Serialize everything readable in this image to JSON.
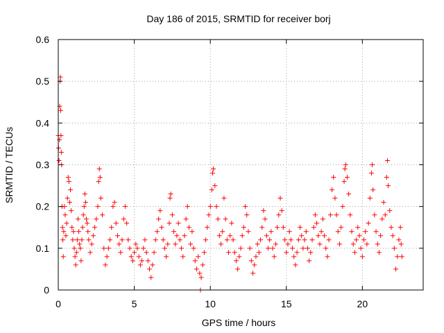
{
  "chart_data": {
    "type": "scatter",
    "title": "Day 186 of 2015, SRMTID for receiver borj",
    "xlabel": "GPS time / hours",
    "ylabel": "SRMTID / TECUs",
    "xlim": [
      0,
      24
    ],
    "ylim": [
      0,
      0.6
    ],
    "xticks": [
      0,
      5,
      10,
      15,
      20
    ],
    "xtick_labels": [
      "0",
      "5",
      "10",
      "15",
      "20"
    ],
    "yticks": [
      0,
      0.1,
      0.2,
      0.3,
      0.4,
      0.5,
      0.6
    ],
    "ytick_labels": [
      "0",
      "0.1",
      "0.2",
      "0.3",
      "0.4",
      "0.5",
      "0.6"
    ],
    "grid": true,
    "marker": "+",
    "color": "#ff0000",
    "series": [
      {
        "name": "SRMTID",
        "points": [
          [
            0.0,
            0.37
          ],
          [
            0.02,
            0.34
          ],
          [
            0.05,
            0.31
          ],
          [
            0.08,
            0.36
          ],
          [
            0.1,
            0.44
          ],
          [
            0.12,
            0.5
          ],
          [
            0.14,
            0.51
          ],
          [
            0.16,
            0.43
          ],
          [
            0.18,
            0.37
          ],
          [
            0.2,
            0.33
          ],
          [
            0.22,
            0.3
          ],
          [
            0.25,
            0.2
          ],
          [
            0.28,
            0.15
          ],
          [
            0.3,
            0.12
          ],
          [
            0.33,
            0.08
          ],
          [
            0.36,
            0.14
          ],
          [
            0.4,
            0.2
          ],
          [
            0.45,
            0.18
          ],
          [
            0.5,
            0.13
          ],
          [
            0.55,
            0.16
          ],
          [
            0.6,
            0.22
          ],
          [
            0.65,
            0.27
          ],
          [
            0.7,
            0.26
          ],
          [
            0.75,
            0.21
          ],
          [
            0.8,
            0.24
          ],
          [
            0.85,
            0.19
          ],
          [
            0.9,
            0.15
          ],
          [
            0.95,
            0.12
          ],
          [
            1.0,
            0.14
          ],
          [
            1.05,
            0.1
          ],
          [
            1.1,
            0.08
          ],
          [
            1.15,
            0.06
          ],
          [
            1.2,
            0.09
          ],
          [
            1.25,
            0.12
          ],
          [
            1.3,
            0.17
          ],
          [
            1.35,
            0.14
          ],
          [
            1.4,
            0.11
          ],
          [
            1.45,
            0.1
          ],
          [
            1.5,
            0.07
          ],
          [
            1.55,
            0.12
          ],
          [
            1.6,
            0.15
          ],
          [
            1.65,
            0.18
          ],
          [
            1.7,
            0.2
          ],
          [
            1.75,
            0.23
          ],
          [
            1.8,
            0.21
          ],
          [
            1.85,
            0.17
          ],
          [
            1.9,
            0.16
          ],
          [
            1.95,
            0.14
          ],
          [
            2.0,
            0.12
          ],
          [
            2.1,
            0.09
          ],
          [
            2.2,
            0.11
          ],
          [
            2.3,
            0.13
          ],
          [
            2.4,
            0.15
          ],
          [
            2.5,
            0.17
          ],
          [
            2.6,
            0.2
          ],
          [
            2.65,
            0.26
          ],
          [
            2.7,
            0.29
          ],
          [
            2.75,
            0.27
          ],
          [
            2.8,
            0.22
          ],
          [
            2.9,
            0.18
          ],
          [
            3.0,
            0.1
          ],
          [
            3.1,
            0.06
          ],
          [
            3.2,
            0.08
          ],
          [
            3.3,
            0.1
          ],
          [
            3.4,
            0.12
          ],
          [
            3.5,
            0.15
          ],
          [
            3.6,
            0.2
          ],
          [
            3.7,
            0.21
          ],
          [
            3.8,
            0.16
          ],
          [
            3.9,
            0.13
          ],
          [
            4.0,
            0.11
          ],
          [
            4.1,
            0.09
          ],
          [
            4.2,
            0.12
          ],
          [
            4.3,
            0.17
          ],
          [
            4.4,
            0.2
          ],
          [
            4.5,
            0.16
          ],
          [
            4.6,
            0.12
          ],
          [
            4.7,
            0.1
          ],
          [
            4.8,
            0.08
          ],
          [
            4.9,
            0.07
          ],
          [
            5.0,
            0.09
          ],
          [
            5.1,
            0.11
          ],
          [
            5.2,
            0.1
          ],
          [
            5.3,
            0.08
          ],
          [
            5.4,
            0.06
          ],
          [
            5.5,
            0.07
          ],
          [
            5.6,
            0.1
          ],
          [
            5.7,
            0.12
          ],
          [
            5.8,
            0.09
          ],
          [
            5.9,
            0.07
          ],
          [
            6.0,
            0.05
          ],
          [
            6.1,
            0.03
          ],
          [
            6.2,
            0.06
          ],
          [
            6.3,
            0.09
          ],
          [
            6.4,
            0.12
          ],
          [
            6.5,
            0.14
          ],
          [
            6.6,
            0.17
          ],
          [
            6.7,
            0.19
          ],
          [
            6.8,
            0.15
          ],
          [
            6.9,
            0.12
          ],
          [
            7.0,
            0.1
          ],
          [
            7.1,
            0.08
          ],
          [
            7.2,
            0.11
          ],
          [
            7.3,
            0.16
          ],
          [
            7.35,
            0.22
          ],
          [
            7.4,
            0.23
          ],
          [
            7.5,
            0.18
          ],
          [
            7.6,
            0.14
          ],
          [
            7.7,
            0.11
          ],
          [
            7.8,
            0.13
          ],
          [
            7.9,
            0.16
          ],
          [
            8.0,
            0.12
          ],
          [
            8.1,
            0.1
          ],
          [
            8.2,
            0.08
          ],
          [
            8.3,
            0.13
          ],
          [
            8.4,
            0.17
          ],
          [
            8.5,
            0.2
          ],
          [
            8.6,
            0.15
          ],
          [
            8.7,
            0.11
          ],
          [
            8.8,
            0.14
          ],
          [
            8.9,
            0.1
          ],
          [
            9.0,
            0.07
          ],
          [
            9.1,
            0.05
          ],
          [
            9.2,
            0.08
          ],
          [
            9.3,
            0.04
          ],
          [
            9.35,
            0.0
          ],
          [
            9.4,
            0.03
          ],
          [
            9.5,
            0.06
          ],
          [
            9.6,
            0.09
          ],
          [
            9.7,
            0.12
          ],
          [
            9.8,
            0.15
          ],
          [
            9.9,
            0.18
          ],
          [
            10.0,
            0.2
          ],
          [
            10.1,
            0.24
          ],
          [
            10.15,
            0.28
          ],
          [
            10.2,
            0.29
          ],
          [
            10.3,
            0.25
          ],
          [
            10.4,
            0.2
          ],
          [
            10.5,
            0.17
          ],
          [
            10.6,
            0.13
          ],
          [
            10.7,
            0.11
          ],
          [
            10.8,
            0.14
          ],
          [
            10.9,
            0.22
          ],
          [
            11.0,
            0.17
          ],
          [
            11.1,
            0.12
          ],
          [
            11.2,
            0.09
          ],
          [
            11.3,
            0.13
          ],
          [
            11.4,
            0.16
          ],
          [
            11.5,
            0.12
          ],
          [
            11.6,
            0.09
          ],
          [
            11.7,
            0.07
          ],
          [
            11.8,
            0.05
          ],
          [
            11.9,
            0.08
          ],
          [
            12.0,
            0.1
          ],
          [
            12.1,
            0.13
          ],
          [
            12.2,
            0.15
          ],
          [
            12.3,
            0.2
          ],
          [
            12.4,
            0.18
          ],
          [
            12.5,
            0.14
          ],
          [
            12.6,
            0.1
          ],
          [
            12.7,
            0.07
          ],
          [
            12.8,
            0.04
          ],
          [
            12.9,
            0.06
          ],
          [
            13.0,
            0.08
          ],
          [
            13.1,
            0.11
          ],
          [
            13.2,
            0.09
          ],
          [
            13.3,
            0.12
          ],
          [
            13.4,
            0.15
          ],
          [
            13.5,
            0.19
          ],
          [
            13.6,
            0.17
          ],
          [
            13.7,
            0.13
          ],
          [
            13.8,
            0.1
          ],
          [
            13.9,
            0.12
          ],
          [
            14.0,
            0.14
          ],
          [
            14.1,
            0.1
          ],
          [
            14.2,
            0.08
          ],
          [
            14.3,
            0.11
          ],
          [
            14.4,
            0.15
          ],
          [
            14.5,
            0.18
          ],
          [
            14.6,
            0.22
          ],
          [
            14.7,
            0.19
          ],
          [
            14.8,
            0.15
          ],
          [
            14.9,
            0.12
          ],
          [
            15.0,
            0.09
          ],
          [
            15.1,
            0.11
          ],
          [
            15.2,
            0.14
          ],
          [
            15.3,
            0.12
          ],
          [
            15.4,
            0.1
          ],
          [
            15.5,
            0.08
          ],
          [
            15.6,
            0.06
          ],
          [
            15.7,
            0.09
          ],
          [
            15.8,
            0.12
          ],
          [
            15.9,
            0.15
          ],
          [
            16.0,
            0.13
          ],
          [
            16.1,
            0.1
          ],
          [
            16.2,
            0.12
          ],
          [
            16.3,
            0.14
          ],
          [
            16.4,
            0.1
          ],
          [
            16.5,
            0.07
          ],
          [
            16.6,
            0.09
          ],
          [
            16.7,
            0.12
          ],
          [
            16.8,
            0.15
          ],
          [
            16.9,
            0.18
          ],
          [
            17.0,
            0.16
          ],
          [
            17.1,
            0.13
          ],
          [
            17.2,
            0.11
          ],
          [
            17.3,
            0.14
          ],
          [
            17.4,
            0.17
          ],
          [
            17.5,
            0.13
          ],
          [
            17.6,
            0.1
          ],
          [
            17.7,
            0.08
          ],
          [
            17.8,
            0.12
          ],
          [
            17.9,
            0.18
          ],
          [
            18.0,
            0.24
          ],
          [
            18.1,
            0.27
          ],
          [
            18.2,
            0.22
          ],
          [
            18.3,
            0.18
          ],
          [
            18.4,
            0.14
          ],
          [
            18.5,
            0.11
          ],
          [
            18.6,
            0.15
          ],
          [
            18.7,
            0.2
          ],
          [
            18.8,
            0.26
          ],
          [
            18.85,
            0.29
          ],
          [
            18.9,
            0.3
          ],
          [
            19.0,
            0.27
          ],
          [
            19.1,
            0.23
          ],
          [
            19.2,
            0.18
          ],
          [
            19.3,
            0.14
          ],
          [
            19.4,
            0.11
          ],
          [
            19.5,
            0.09
          ],
          [
            19.6,
            0.12
          ],
          [
            19.7,
            0.15
          ],
          [
            19.8,
            0.13
          ],
          [
            19.9,
            0.1
          ],
          [
            20.0,
            0.08
          ],
          [
            20.1,
            0.12
          ],
          [
            20.2,
            0.14
          ],
          [
            20.3,
            0.11
          ],
          [
            20.4,
            0.16
          ],
          [
            20.5,
            0.22
          ],
          [
            20.6,
            0.28
          ],
          [
            20.65,
            0.3
          ],
          [
            20.7,
            0.24
          ],
          [
            20.8,
            0.18
          ],
          [
            20.9,
            0.14
          ],
          [
            21.0,
            0.11
          ],
          [
            21.1,
            0.09
          ],
          [
            21.2,
            0.13
          ],
          [
            21.3,
            0.17
          ],
          [
            21.4,
            0.21
          ],
          [
            21.5,
            0.18
          ],
          [
            21.6,
            0.27
          ],
          [
            21.65,
            0.31
          ],
          [
            21.7,
            0.25
          ],
          [
            21.8,
            0.19
          ],
          [
            21.9,
            0.15
          ],
          [
            22.0,
            0.13
          ],
          [
            22.1,
            0.1
          ],
          [
            22.2,
            0.05
          ],
          [
            22.3,
            0.08
          ],
          [
            22.4,
            0.12
          ],
          [
            22.5,
            0.15
          ],
          [
            22.55,
            0.11
          ],
          [
            22.6,
            0.08
          ]
        ]
      }
    ]
  }
}
